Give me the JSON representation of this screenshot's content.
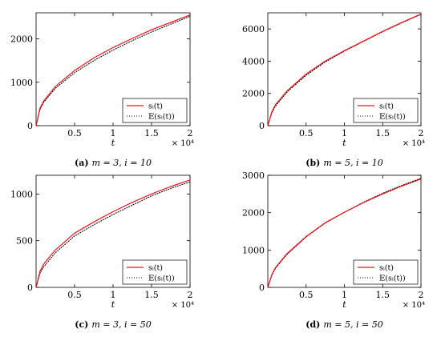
{
  "chart_data": [
    {
      "type": "line",
      "caption": {
        "letter": "(a)",
        "text": "m = 3, i = 10"
      },
      "xlabel": "t",
      "x_scale_note": "× 10⁴",
      "xlim": [
        0,
        20000
      ],
      "ylim": [
        0,
        2600
      ],
      "xticks": [
        5000,
        10000,
        15000,
        20000
      ],
      "xtick_labels": [
        "0.5",
        "1",
        "1.5",
        "2"
      ],
      "yticks": [
        0,
        1000,
        2000
      ],
      "ytick_labels": [
        "0",
        "1000",
        "2000"
      ],
      "legend_position": "bottom-right",
      "series": [
        {
          "name": "sᵢ(t)",
          "style": "solid",
          "color": "#e8141b",
          "x": [
            10,
            500,
            1000,
            2500,
            5000,
            7500,
            10000,
            12500,
            15000,
            17500,
            20000
          ],
          "y": [
            0,
            400,
            570,
            900,
            1270,
            1560,
            1800,
            2010,
            2210,
            2380,
            2550
          ]
        },
        {
          "name": "𝔼(sᵢ(t))",
          "style": "dotted",
          "color": "#000000",
          "x": [
            10,
            500,
            1000,
            2500,
            5000,
            7500,
            10000,
            12500,
            15000,
            17500,
            20000
          ],
          "y": [
            0,
            370,
            540,
            860,
            1220,
            1500,
            1740,
            1960,
            2160,
            2340,
            2520
          ]
        }
      ]
    },
    {
      "type": "line",
      "caption": {
        "letter": "(b)",
        "text": "m = 5, i = 10"
      },
      "xlabel": "t",
      "x_scale_note": "× 10⁴",
      "xlim": [
        0,
        20000
      ],
      "ylim": [
        0,
        7000
      ],
      "xticks": [
        5000,
        10000,
        15000,
        20000
      ],
      "xtick_labels": [
        "0.5",
        "1",
        "1.5",
        "2"
      ],
      "yticks": [
        0,
        2000,
        4000,
        6000
      ],
      "ytick_labels": [
        "0",
        "2000",
        "4000",
        "6000"
      ],
      "legend_position": "bottom-right",
      "series": [
        {
          "name": "sᵢ(t)",
          "style": "solid",
          "color": "#e8141b",
          "x": [
            10,
            500,
            1000,
            2500,
            5000,
            7500,
            10000,
            12500,
            15000,
            17500,
            20000
          ],
          "y": [
            0,
            830,
            1300,
            2150,
            3200,
            4000,
            4650,
            5250,
            5850,
            6400,
            6920
          ]
        },
        {
          "name": "𝔼(sᵢ(t))",
          "style": "dotted",
          "color": "#000000",
          "x": [
            10,
            500,
            1000,
            2500,
            5000,
            7500,
            10000,
            12500,
            15000,
            17500,
            20000
          ],
          "y": [
            0,
            760,
            1220,
            2080,
            3130,
            3950,
            4620,
            5230,
            5830,
            6380,
            6900
          ]
        }
      ]
    },
    {
      "type": "line",
      "caption": {
        "letter": "(c)",
        "text": "m = 3, i = 50"
      },
      "xlabel": "t",
      "x_scale_note": "× 10⁴",
      "xlim": [
        0,
        20000
      ],
      "ylim": [
        0,
        1200
      ],
      "xticks": [
        5000,
        10000,
        15000,
        20000
      ],
      "xtick_labels": [
        "0.5",
        "1",
        "1.5",
        "2"
      ],
      "yticks": [
        0,
        500,
        1000
      ],
      "ytick_labels": [
        "0",
        "500",
        "1000"
      ],
      "legend_position": "bottom-right",
      "series": [
        {
          "name": "sᵢ(t)",
          "style": "solid",
          "color": "#e8141b",
          "x": [
            10,
            500,
            1000,
            2500,
            5000,
            7500,
            10000,
            12500,
            15000,
            17500,
            20000
          ],
          "y": [
            0,
            170,
            250,
            400,
            580,
            700,
            810,
            910,
            1000,
            1080,
            1150
          ]
        },
        {
          "name": "𝔼(sᵢ(t))",
          "style": "dotted",
          "color": "#000000",
          "x": [
            10,
            500,
            1000,
            2500,
            5000,
            7500,
            10000,
            12500,
            15000,
            17500,
            20000
          ],
          "y": [
            0,
            150,
            220,
            370,
            550,
            670,
            780,
            880,
            980,
            1060,
            1130
          ]
        }
      ]
    },
    {
      "type": "line",
      "caption": {
        "letter": "(d)",
        "text": "m = 5, i = 50"
      },
      "xlabel": "t",
      "x_scale_note": "× 10⁴",
      "xlim": [
        0,
        20000
      ],
      "ylim": [
        0,
        3000
      ],
      "xticks": [
        5000,
        10000,
        15000,
        20000
      ],
      "xtick_labels": [
        "0.5",
        "1",
        "1.5",
        "2"
      ],
      "yticks": [
        0,
        1000,
        2000,
        3000
      ],
      "ytick_labels": [
        "0",
        "1000",
        "2000",
        "3000"
      ],
      "legend_position": "bottom-right",
      "series": [
        {
          "name": "sᵢ(t)",
          "style": "solid",
          "color": "#e8141b",
          "x": [
            10,
            500,
            1000,
            2500,
            5000,
            7500,
            10000,
            12500,
            15000,
            17500,
            20000
          ],
          "y": [
            0,
            330,
            530,
            900,
            1360,
            1730,
            2010,
            2270,
            2500,
            2710,
            2900
          ]
        },
        {
          "name": "𝔼(sᵢ(t))",
          "style": "dotted",
          "color": "#000000",
          "x": [
            10,
            500,
            1000,
            2500,
            5000,
            7500,
            10000,
            12500,
            15000,
            17500,
            20000
          ],
          "y": [
            0,
            310,
            510,
            880,
            1350,
            1720,
            2010,
            2280,
            2520,
            2730,
            2920
          ]
        }
      ]
    }
  ]
}
